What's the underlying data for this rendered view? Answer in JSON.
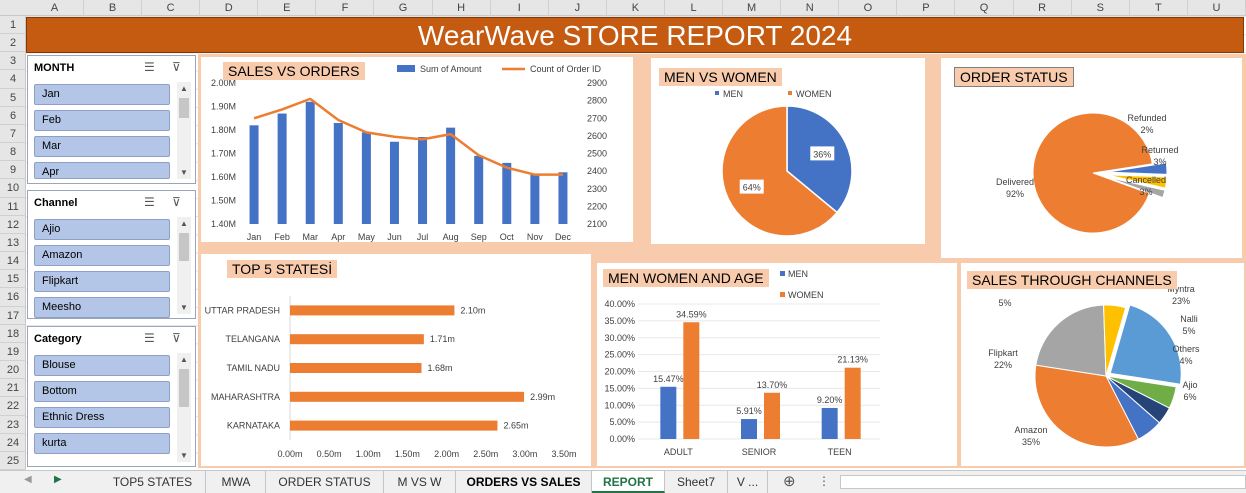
{
  "columns": [
    "A",
    "B",
    "C",
    "D",
    "E",
    "F",
    "G",
    "H",
    "I",
    "J",
    "K",
    "L",
    "M",
    "N",
    "O",
    "P",
    "Q",
    "R",
    "S",
    "T",
    "U"
  ],
  "rows": [
    "1",
    "2",
    "3",
    "4",
    "5",
    "6",
    "7",
    "8",
    "9",
    "10",
    "11",
    "12",
    "13",
    "14",
    "15",
    "16",
    "17",
    "18",
    "19",
    "20",
    "21",
    "22",
    "23",
    "24",
    "25"
  ],
  "title": "WearWave STORE REPORT 2024",
  "slicers": [
    {
      "header": "MONTH",
      "items": [
        "Jan",
        "Feb",
        "Mar",
        "Apr"
      ]
    },
    {
      "header": "Channel",
      "items": [
        "Ajio",
        "Amazon",
        "Flipkart",
        "Meesho"
      ]
    },
    {
      "header": "Category",
      "items": [
        "Blouse",
        "Bottom",
        "Ethnic Dress",
        "kurta"
      ]
    }
  ],
  "panels": {
    "sales_orders": "SALES VS ORDERS",
    "men_women": "MEN VS WOMEN",
    "order_status": "ORDER STATUS",
    "top5": "TOP 5 STATESİ",
    "age": "MEN WOMEN AND AGE",
    "channels": "SALES THROUGH CHANNELS"
  },
  "chart_data": [
    {
      "type": "bar",
      "title": "SALES VS ORDERS",
      "categories": [
        "Jan",
        "Feb",
        "Mar",
        "Apr",
        "May",
        "Jun",
        "Jul",
        "Aug",
        "Sep",
        "Oct",
        "Nov",
        "Dec"
      ],
      "series": [
        {
          "name": "Sum of Amount",
          "type": "bar",
          "values": [
            1.82,
            1.87,
            1.92,
            1.83,
            1.79,
            1.75,
            1.77,
            1.81,
            1.69,
            1.66,
            1.61,
            1.62
          ]
        },
        {
          "name": "Count of Order ID",
          "type": "line",
          "values": [
            2700,
            2750,
            2810,
            2690,
            2620,
            2595,
            2580,
            2610,
            2490,
            2420,
            2380,
            2380
          ]
        }
      ],
      "ylim": [
        1.4,
        2.0
      ],
      "y_ticks": [
        "1.40M",
        "1.50M",
        "1.60M",
        "1.70M",
        "1.80M",
        "1.90M",
        "2.00M"
      ],
      "y2lim": [
        2100,
        2900
      ],
      "y2_ticks": [
        "2100",
        "2200",
        "2300",
        "2400",
        "2500",
        "2600",
        "2700",
        "2800",
        "2900"
      ],
      "legend": "top"
    },
    {
      "type": "pie",
      "title": "MEN VS WOMEN",
      "categories": [
        "MEN",
        "WOMEN"
      ],
      "values": [
        36,
        64
      ],
      "labels": [
        "36%",
        "64%"
      ],
      "colors": [
        "#4472c4",
        "#ed7d31"
      ],
      "legend": "top"
    },
    {
      "type": "pie",
      "title": "ORDER STATUS",
      "categories": [
        "Delivered",
        "Cancelled",
        "Returned",
        "Refunded"
      ],
      "values": [
        92,
        3,
        3,
        2
      ],
      "labels": [
        "Delivered\n92%",
        "Cancelled\n3%",
        "Returned\n3%",
        "Refunded\n2%"
      ],
      "colors": [
        "#ed7d31",
        "#4472c4",
        "#ffc000",
        "#a5a5a5"
      ]
    },
    {
      "type": "bar",
      "orientation": "horizontal",
      "title": "TOP 5 STATESİ",
      "categories": [
        "UTTAR PRADESH",
        "TELANGANA",
        "TAMIL NADU",
        "MAHARASHTRA",
        "KARNATAKA"
      ],
      "values": [
        2.1,
        1.71,
        1.68,
        2.99,
        2.65
      ],
      "labels": [
        "2.10m",
        "1.71m",
        "1.68m",
        "2.99m",
        "2.65m"
      ],
      "xlim": [
        0,
        3.5
      ],
      "x_ticks": [
        "0.00m",
        "0.50m",
        "1.00m",
        "1.50m",
        "2.00m",
        "2.50m",
        "3.00m",
        "3.50m"
      ]
    },
    {
      "type": "bar",
      "title": "MEN WOMEN AND AGE",
      "categories": [
        "ADULT",
        "SENIOR",
        "TEEN"
      ],
      "series": [
        {
          "name": "MEN",
          "values": [
            15.47,
            5.91,
            9.2
          ],
          "labels": [
            "15.47%",
            "5.91%",
            "9.20%"
          ]
        },
        {
          "name": "WOMEN",
          "values": [
            34.59,
            13.7,
            21.13
          ],
          "labels": [
            "34.59%",
            "13.70%",
            "21.13%"
          ]
        }
      ],
      "ylim": [
        0,
        40
      ],
      "y_ticks": [
        "0.00%",
        "5.00%",
        "10.00%",
        "15.00%",
        "20.00%",
        "25.00%",
        "30.00%",
        "35.00%",
        "40.00%"
      ],
      "legend": "top"
    },
    {
      "type": "pie",
      "title": "SALES THROUGH CHANNELS",
      "categories": [
        "Myntra",
        "Nalli",
        "Others",
        "Ajio",
        "Amazon",
        "Flipkart",
        "Meesho"
      ],
      "values": [
        23,
        5,
        4,
        6,
        35,
        22,
        5
      ],
      "labels": [
        "Myntra\n23%",
        "Nalli\n5%",
        "Others\n4%",
        "Ajio\n6%",
        "Amazon\n35%",
        "Flipkart\n22%",
        "5%"
      ],
      "colors": [
        "#5b9bd5",
        "#70ad47",
        "#264478",
        "#4472c4",
        "#ed7d31",
        "#a5a5a5",
        "#ffc000"
      ]
    }
  ],
  "sheet_tabs": [
    "TOP5 STATES",
    "MWA",
    "ORDER STATUS",
    "M VS W",
    "ORDERS VS SALES",
    "REPORT",
    "Sheet7",
    "V ..."
  ],
  "active_tab": "REPORT",
  "colors": {
    "banner": "#c55a11",
    "panel_bg": "#f8cbad",
    "bar_blue": "#4472c4",
    "bar_orange": "#ed7d31",
    "slicer_item": "#b4c6e7",
    "active_tab_text": "#217346"
  }
}
